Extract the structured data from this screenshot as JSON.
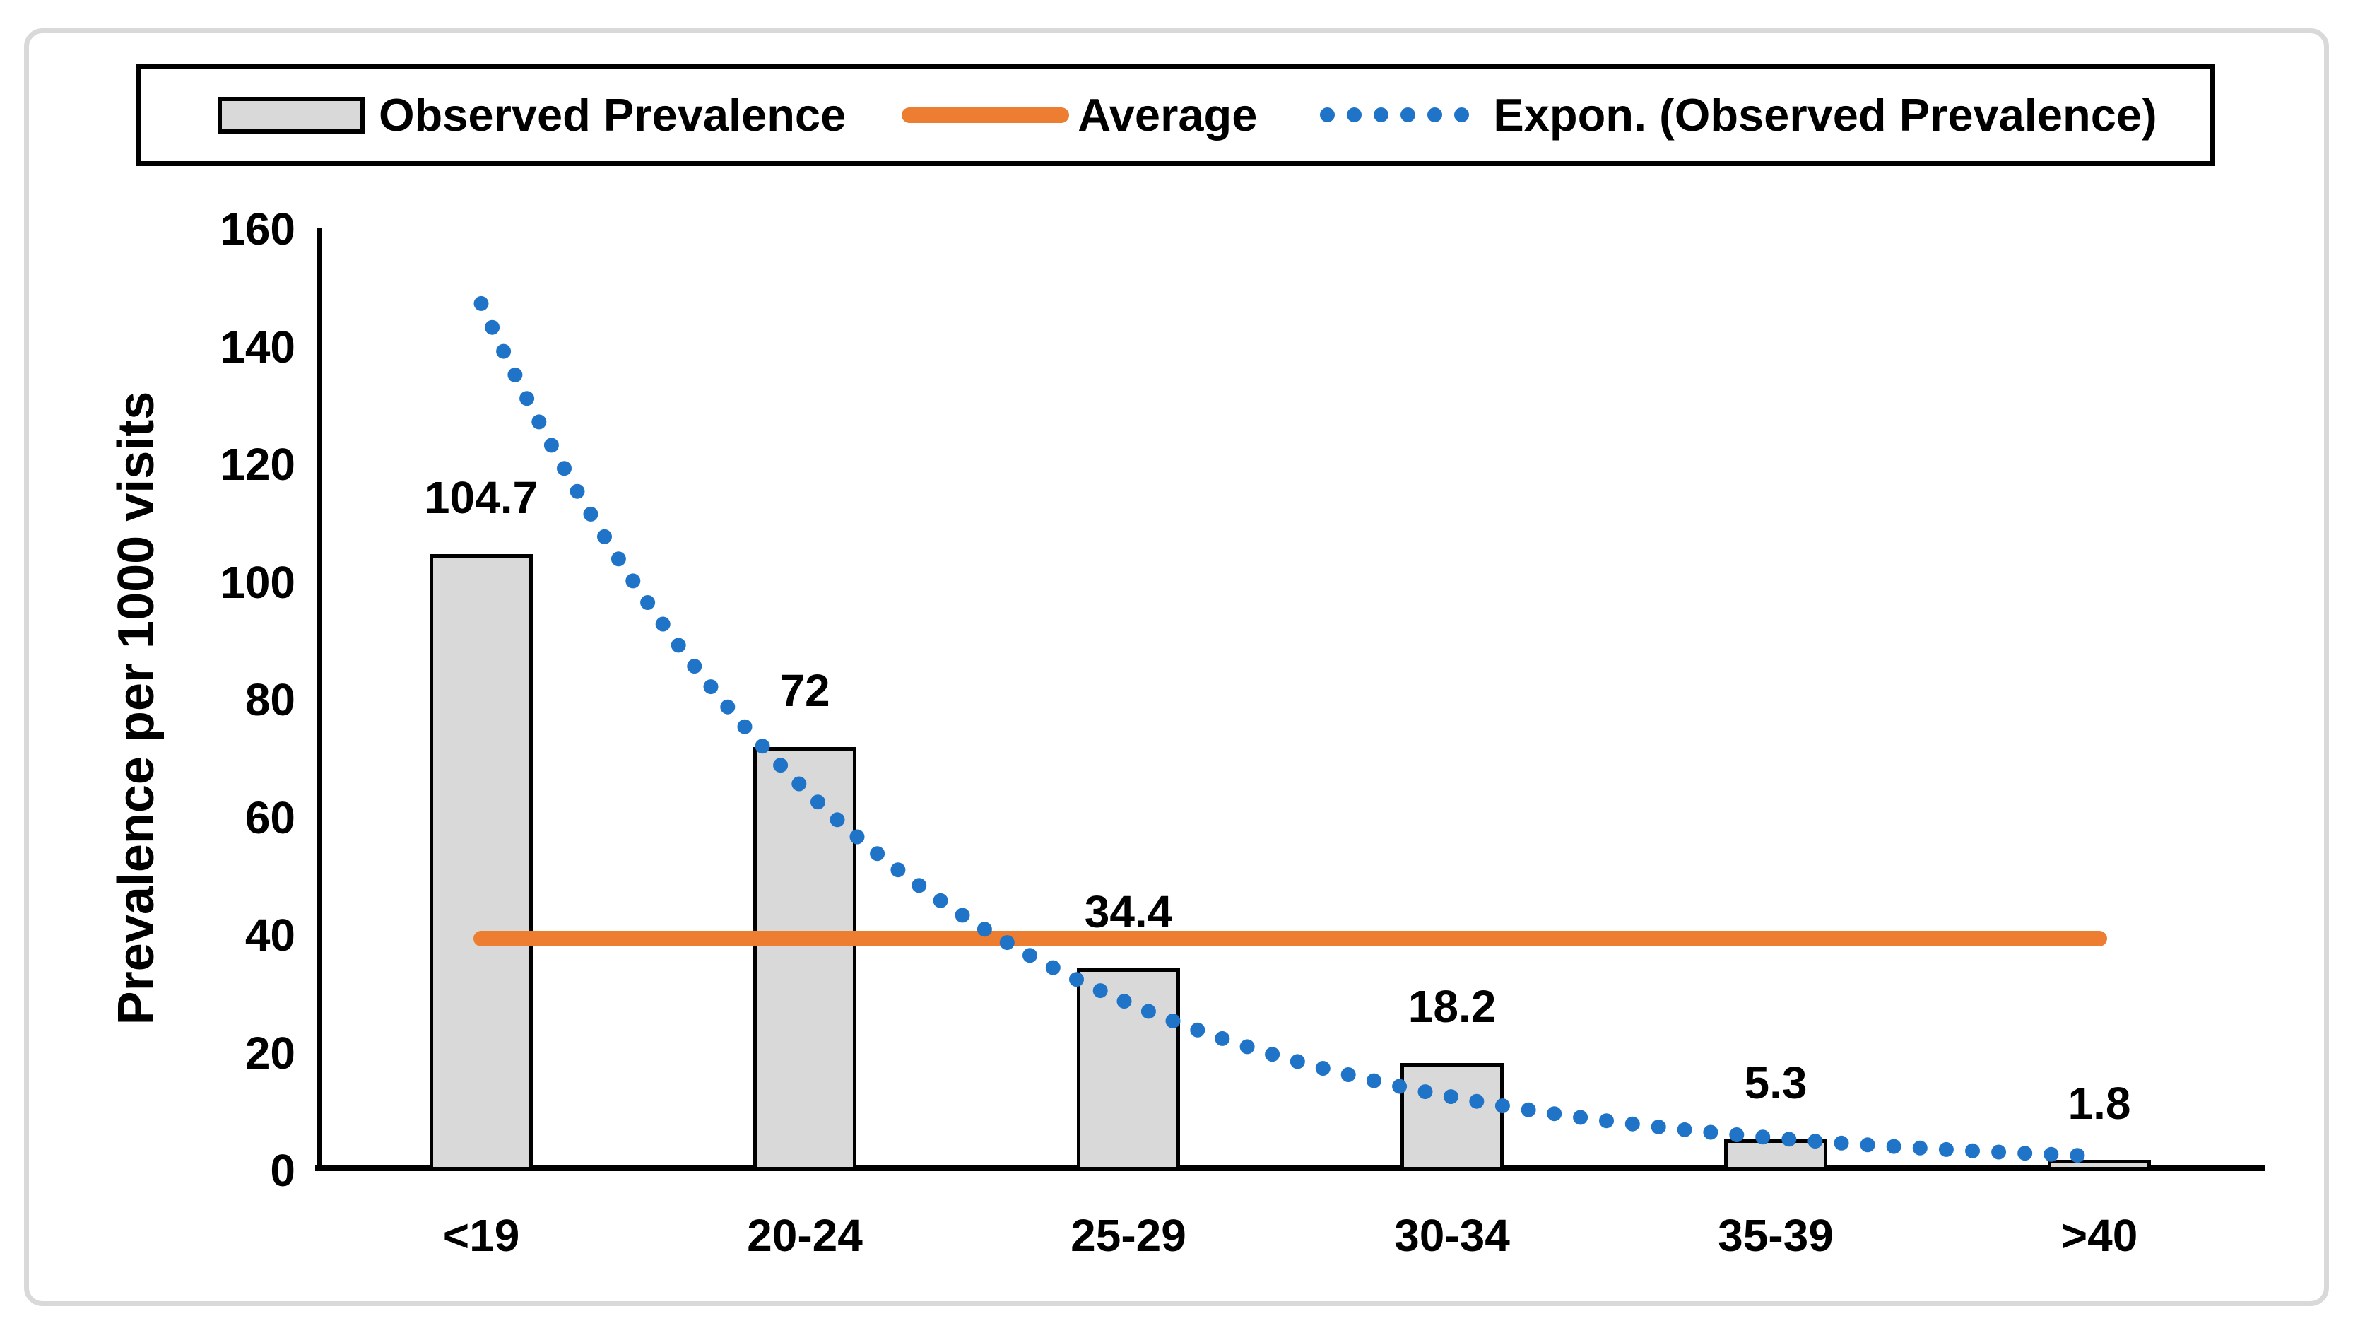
{
  "chart_data": {
    "type": "bar",
    "title": "",
    "ylabel": "Prevalence per 1000 visits",
    "xlabel": "",
    "ylim": [
      0,
      160
    ],
    "ytick_step": 20,
    "yticks": [
      "0",
      "20",
      "40",
      "60",
      "80",
      "100",
      "120",
      "140",
      "160"
    ],
    "categories": [
      "<19",
      "20-24",
      "25-29",
      "30-34",
      "35-39",
      ">40"
    ],
    "grid": false,
    "legend_position": "top",
    "series": [
      {
        "name": "Observed Prevalence",
        "kind": "bar",
        "values": [
          104.7,
          72,
          34.4,
          18.2,
          5.3,
          1.8
        ],
        "data_labels": [
          "104.7",
          "72",
          "34.4",
          "18.2",
          "5.3",
          "1.8"
        ],
        "fill": "#D9D9D9",
        "border_color": "#000000"
      },
      {
        "name": "Average",
        "kind": "horizontal_line",
        "value": 39.4,
        "color": "#ED7D31"
      },
      {
        "name": "Expon. (Observed Prevalence)",
        "kind": "exponential_trendline",
        "style": "dotted",
        "a": 335.3,
        "b": -0.8223,
        "x_range": [
          1,
          6
        ],
        "color": "#1F74C8"
      }
    ]
  },
  "styles": {
    "bar_fill": "#D9D9D9",
    "bar_border": "#000000",
    "average_color": "#ED7D31",
    "trendline_color": "#1F74C8",
    "frame_border": "#D9D9D9",
    "axis_color": "#000000",
    "text_color": "#000000",
    "background": "#FFFFFF"
  }
}
